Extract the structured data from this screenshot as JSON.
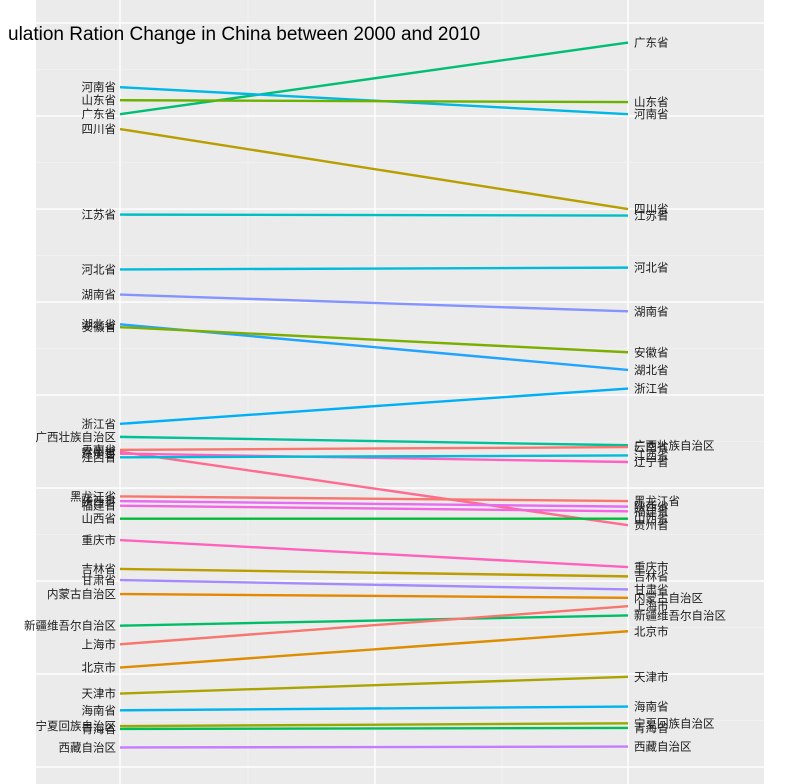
{
  "chart_data": {
    "type": "slope",
    "title": "ulation Ration Change in China between 2000 and 2010",
    "xlabel": "",
    "ylabel": "",
    "x": [
      "2000",
      "2010"
    ],
    "grid": true,
    "legend": "none",
    "series": [
      {
        "name": "广东省",
        "values": [
          7.02,
          7.79
        ],
        "color": "#00BF74"
      },
      {
        "name": "河南省",
        "values": [
          7.31,
          7.02
        ],
        "color": "#00B8E5"
      },
      {
        "name": "山东省",
        "values": [
          7.17,
          7.15
        ],
        "color": "#6BB100"
      },
      {
        "name": "四川省",
        "values": [
          6.86,
          6.0
        ],
        "color": "#B79F00"
      },
      {
        "name": "江苏省",
        "values": [
          5.94,
          5.93
        ],
        "color": "#00BFC4"
      },
      {
        "name": "河北省",
        "values": [
          5.35,
          5.37
        ],
        "color": "#00BBDB"
      },
      {
        "name": "湖南省",
        "values": [
          5.08,
          4.9
        ],
        "color": "#8494FF"
      },
      {
        "name": "湖北省",
        "values": [
          4.76,
          4.27
        ],
        "color": "#1FA4FF"
      },
      {
        "name": "安徽省",
        "values": [
          4.73,
          4.46
        ],
        "color": "#7CAE00"
      },
      {
        "name": "浙江省",
        "values": [
          3.69,
          4.07
        ],
        "color": "#00B0F6"
      },
      {
        "name": "广西壮族自治区",
        "values": [
          3.55,
          3.46
        ],
        "color": "#00C19A"
      },
      {
        "name": "云南省",
        "values": [
          3.41,
          3.44
        ],
        "color": "#F8766D"
      },
      {
        "name": "贵州省",
        "values": [
          3.39,
          2.6
        ],
        "color": "#FF6C91"
      },
      {
        "name": "辽宁省",
        "values": [
          3.37,
          3.28
        ],
        "color": "#FF61C3"
      },
      {
        "name": "江西省",
        "values": [
          3.33,
          3.35
        ],
        "color": "#00BCD8"
      },
      {
        "name": "黑龙江省",
        "values": [
          2.91,
          2.86
        ],
        "color": "#F8766D"
      },
      {
        "name": "陕西省",
        "values": [
          2.86,
          2.8
        ],
        "color": "#E76BF3"
      },
      {
        "name": "福建省",
        "values": [
          2.81,
          2.75
        ],
        "color": "#F564E3"
      },
      {
        "name": "山西省",
        "values": [
          2.67,
          2.67
        ],
        "color": "#00BA38"
      },
      {
        "name": "重庆市",
        "values": [
          2.44,
          2.15
        ],
        "color": "#FF62BC"
      },
      {
        "name": "吉林省",
        "values": [
          2.13,
          2.05
        ],
        "color": "#BB9D00"
      },
      {
        "name": "甘肃省",
        "values": [
          2.01,
          1.91
        ],
        "color": "#A58AFF"
      },
      {
        "name": "内蒙古自治区",
        "values": [
          1.86,
          1.82
        ],
        "color": "#E58700"
      },
      {
        "name": "新疆维吾尔自治区",
        "values": [
          1.52,
          1.63
        ],
        "color": "#00BE67"
      },
      {
        "name": "上海市",
        "values": [
          1.32,
          1.73
        ],
        "color": "#F8766D"
      },
      {
        "name": "北京市",
        "values": [
          1.07,
          1.46
        ],
        "color": "#DE8C00"
      },
      {
        "name": "天津市",
        "values": [
          0.79,
          0.97
        ],
        "color": "#ABA300"
      },
      {
        "name": "海南省",
        "values": [
          0.61,
          0.65
        ],
        "color": "#00B4EF"
      },
      {
        "name": "宁夏回族自治区",
        "values": [
          0.44,
          0.47
        ],
        "color": "#9AA800"
      },
      {
        "name": "青海省",
        "values": [
          0.41,
          0.42
        ],
        "color": "#00BD5C"
      },
      {
        "name": "西藏自治区",
        "values": [
          0.21,
          0.22
        ],
        "color": "#C77CFF"
      }
    ]
  }
}
